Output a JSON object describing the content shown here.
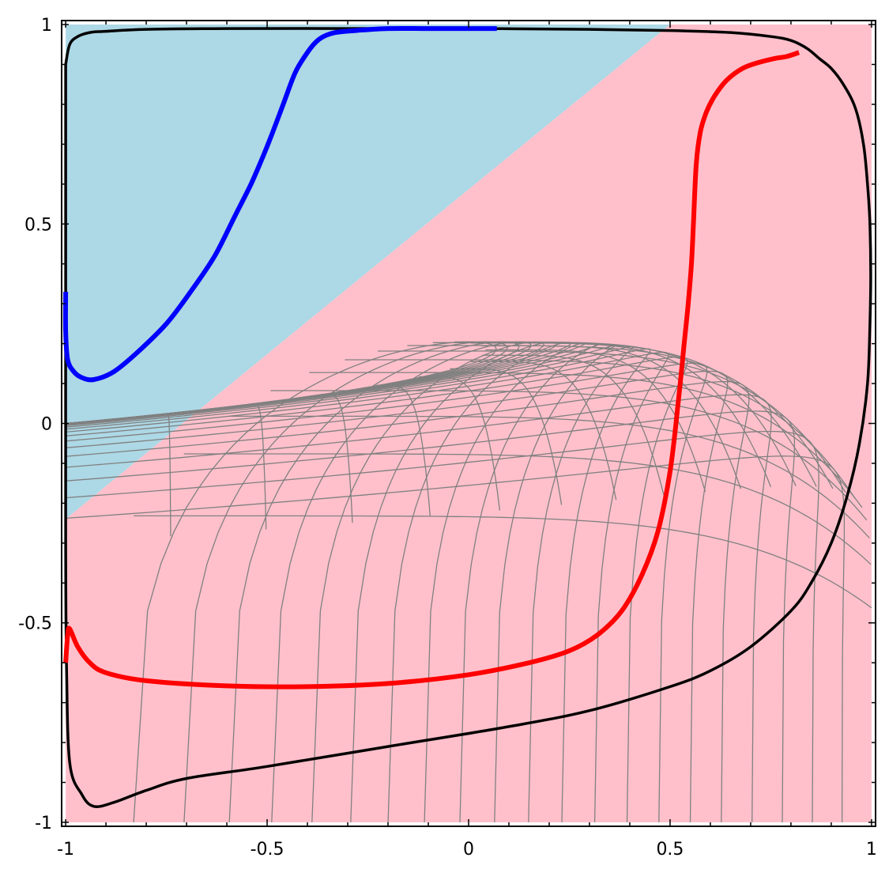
{
  "chart_data": {
    "type": "line",
    "title": "",
    "xlabel": "",
    "ylabel": "",
    "xlim": [
      -1.01,
      1.01
    ],
    "ylim": [
      -1.01,
      1.01
    ],
    "x_ticks": [
      {
        "value": -1,
        "label": "-1"
      },
      {
        "value": -0.5,
        "label": "-0.5"
      },
      {
        "value": 0,
        "label": "0"
      },
      {
        "value": 0.5,
        "label": "0.5"
      },
      {
        "value": 1,
        "label": "1"
      }
    ],
    "y_ticks": [
      {
        "value": -1,
        "label": "-1"
      },
      {
        "value": -0.5,
        "label": "-0.5"
      },
      {
        "value": 0,
        "label": "0"
      },
      {
        "value": 0.5,
        "label": "0.5"
      },
      {
        "value": 1,
        "label": "1"
      }
    ],
    "grid": false,
    "legend": "none",
    "regions": [
      {
        "name": "blue-region",
        "color": "#add8e6",
        "polygon": [
          [
            -1,
            1
          ],
          [
            0.5,
            1
          ],
          [
            -1,
            -0.24
          ]
        ]
      },
      {
        "name": "pink-region",
        "color": "#ffc0cb",
        "polygon": [
          [
            0.5,
            1
          ],
          [
            1,
            1
          ],
          [
            1,
            -1
          ],
          [
            -1,
            -1
          ],
          [
            -1,
            -0.24
          ]
        ]
      }
    ],
    "series": [
      {
        "color": "#000000",
        "role": "boundary",
        "x": [
          -1.0,
          -0.99,
          -0.97,
          -0.94,
          -0.9,
          -0.8,
          -0.6,
          -0.3,
          0.0,
          0.3,
          0.5,
          0.65,
          0.75,
          0.8,
          0.84,
          0.87,
          0.9,
          0.93,
          0.96,
          0.98,
          0.99,
          0.996,
          0.998,
          0.996,
          0.99,
          0.97,
          0.94,
          0.9,
          0.85,
          0.8,
          0.7,
          0.6,
          0.5,
          0.3,
          0.1,
          -0.2,
          -0.5,
          -0.7,
          -0.8,
          -0.88,
          -0.93,
          -0.96,
          -0.99,
          -0.998,
          -1.0,
          -1.0,
          -1.0
        ],
        "y": [
          0.9,
          0.95,
          0.97,
          0.98,
          0.983,
          0.988,
          0.99,
          0.99,
          0.99,
          0.988,
          0.985,
          0.98,
          0.97,
          0.96,
          0.94,
          0.915,
          0.89,
          0.85,
          0.79,
          0.7,
          0.6,
          0.5,
          0.37,
          0.25,
          0.1,
          -0.05,
          -0.18,
          -0.3,
          -0.4,
          -0.47,
          -0.56,
          -0.62,
          -0.66,
          -0.72,
          -0.76,
          -0.81,
          -0.86,
          -0.89,
          -0.92,
          -0.95,
          -0.96,
          -0.93,
          -0.85,
          -0.6,
          -0.3,
          0.3,
          0.9
        ]
      },
      {
        "color": "#0000ff",
        "role": "trajectory",
        "x": [
          -1.0,
          -1.0,
          -0.995,
          -0.98,
          -0.96,
          -0.93,
          -0.88,
          -0.82,
          -0.75,
          -0.69,
          -0.63,
          -0.58,
          -0.54,
          -0.51,
          -0.49,
          -0.46,
          -0.43,
          -0.4,
          -0.38,
          -0.36,
          -0.33,
          -0.28,
          -0.2,
          -0.1,
          0.0,
          0.07
        ],
        "y": [
          0.33,
          0.23,
          0.16,
          0.13,
          0.115,
          0.11,
          0.13,
          0.18,
          0.25,
          0.33,
          0.42,
          0.52,
          0.6,
          0.67,
          0.72,
          0.8,
          0.88,
          0.93,
          0.955,
          0.97,
          0.98,
          0.985,
          0.99,
          0.99,
          0.99,
          0.99
        ]
      },
      {
        "color": "#ff0000",
        "role": "trajectory",
        "x": [
          -1.0,
          -0.995,
          -0.99,
          -0.97,
          -0.94,
          -0.9,
          -0.8,
          -0.6,
          -0.4,
          -0.2,
          0.0,
          0.15,
          0.25,
          0.32,
          0.38,
          0.43,
          0.47,
          0.5,
          0.52,
          0.535,
          0.545,
          0.553,
          0.558,
          0.565,
          0.575,
          0.59,
          0.61,
          0.64,
          0.68,
          0.72,
          0.76,
          0.79,
          0.82
        ],
        "y": [
          -0.6,
          -0.53,
          -0.515,
          -0.56,
          -0.6,
          -0.625,
          -0.645,
          -0.658,
          -0.66,
          -0.652,
          -0.63,
          -0.6,
          -0.57,
          -0.53,
          -0.47,
          -0.38,
          -0.27,
          -0.12,
          0.05,
          0.2,
          0.3,
          0.4,
          0.5,
          0.65,
          0.73,
          0.78,
          0.82,
          0.86,
          0.89,
          0.905,
          0.915,
          0.92,
          0.93
        ]
      }
    ]
  }
}
